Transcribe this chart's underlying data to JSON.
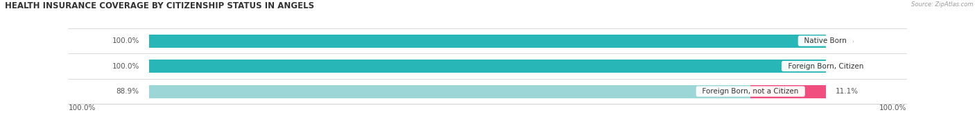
{
  "title": "HEALTH INSURANCE COVERAGE BY CITIZENSHIP STATUS IN ANGELS",
  "source": "Source: ZipAtlas.com",
  "categories": [
    "Native Born",
    "Foreign Born, Citizen",
    "Foreign Born, not a Citizen"
  ],
  "with_coverage": [
    100.0,
    100.0,
    88.9
  ],
  "without_coverage": [
    0.0,
    0.0,
    11.1
  ],
  "color_with_cov": [
    "#29b6b6",
    "#29b6b6",
    "#9dd6d6"
  ],
  "color_without_cov": [
    "#f9b8cc",
    "#f9b8cc",
    "#f04e7e"
  ],
  "legend_with_color": "#29b6b6",
  "legend_without_color": "#f5507a",
  "bar_background": "#e0e0e0",
  "background_color": "#ffffff",
  "title_fontsize": 8.5,
  "label_fontsize": 7.5,
  "cat_label_fontsize": 7.5,
  "bar_height": 0.52,
  "total_width": 100,
  "x_left_label": "100.0%",
  "x_right_label": "100.0%"
}
